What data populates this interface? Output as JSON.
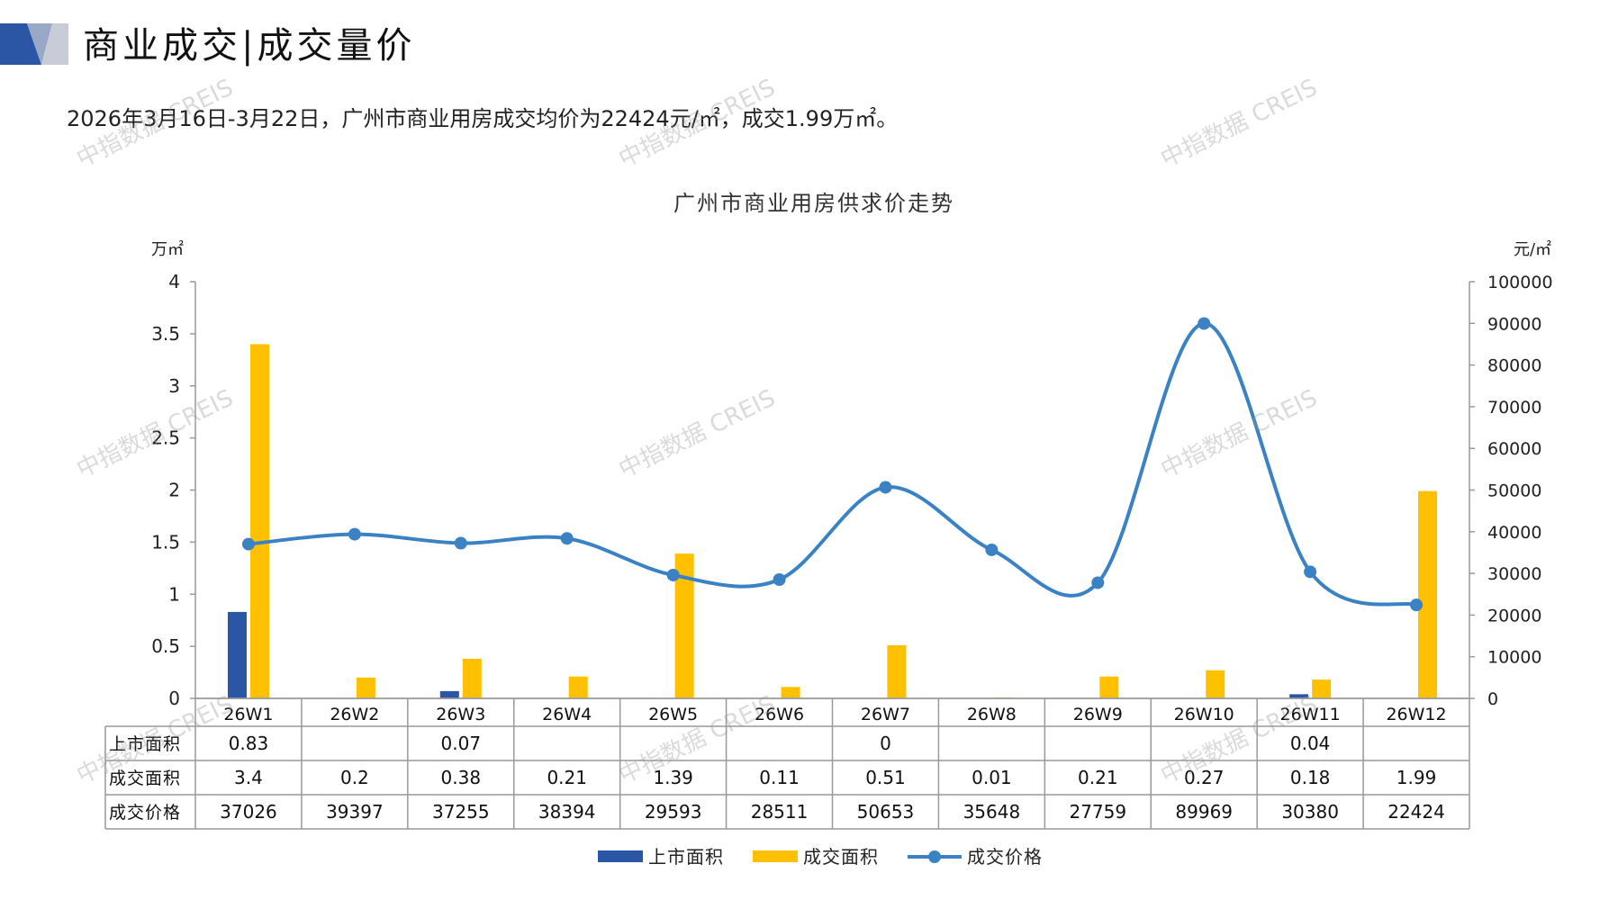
{
  "header": {
    "title": "商业成交|成交量价",
    "summary": "2026年3月16日-3月22日，广州市商业用房成交均价为22424元/㎡，成交1.99万㎡。",
    "deco_colors": [
      "#2b55a5",
      "#9aa8c8",
      "#c7ccd6"
    ]
  },
  "watermark": "中指数据 CREIS",
  "chart_data": {
    "type": "bar",
    "title": "广州市商业用房供求价走势",
    "y_left_label": "万㎡",
    "y_right_label": "元/㎡",
    "ylim_left": [
      0,
      4
    ],
    "ylim_right": [
      0,
      100000
    ],
    "yticks_left": [
      "0",
      "0.5",
      "1",
      "1.5",
      "2",
      "2.5",
      "3",
      "3.5",
      "4"
    ],
    "yticks_right": [
      "0",
      "10000",
      "20000",
      "30000",
      "40000",
      "50000",
      "60000",
      "70000",
      "80000",
      "90000",
      "100000"
    ],
    "categories": [
      "26W1",
      "26W2",
      "26W3",
      "26W4",
      "26W5",
      "26W6",
      "26W7",
      "26W8",
      "26W9",
      "26W10",
      "26W11",
      "26W12"
    ],
    "grid": false,
    "legend_position": "bottom",
    "series": [
      {
        "name": "上市面积",
        "type": "bar",
        "axis": "left",
        "color": "#2b55a5",
        "values": [
          0.83,
          null,
          0.07,
          null,
          null,
          null,
          0,
          null,
          null,
          null,
          0.04,
          null
        ],
        "labels": [
          "0.83",
          "",
          "0.07",
          "",
          "",
          "",
          "0",
          "",
          "",
          "",
          "0.04",
          ""
        ]
      },
      {
        "name": "成交面积",
        "type": "bar",
        "axis": "left",
        "color": "#ffc000",
        "values": [
          3.4,
          0.2,
          0.38,
          0.21,
          1.39,
          0.11,
          0.51,
          0.01,
          0.21,
          0.27,
          0.18,
          1.99
        ],
        "labels": [
          "3.4",
          "0.2",
          "0.38",
          "0.21",
          "1.39",
          "0.11",
          "0.51",
          "0.01",
          "0.21",
          "0.27",
          "0.18",
          "1.99"
        ]
      },
      {
        "name": "成交价格",
        "type": "line",
        "axis": "right",
        "color": "#3a82c4",
        "values": [
          37026,
          39397,
          37255,
          38394,
          29593,
          28511,
          50653,
          35648,
          27759,
          89969,
          30380,
          22424
        ],
        "labels": [
          "37026",
          "39397",
          "37255",
          "38394",
          "29593",
          "28511",
          "50653",
          "35648",
          "27759",
          "89969",
          "30380",
          "22424"
        ]
      }
    ]
  }
}
